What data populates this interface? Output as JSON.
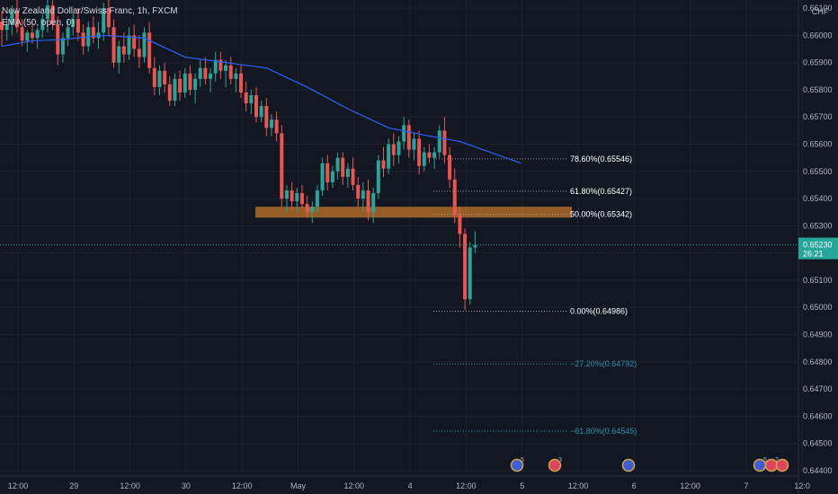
{
  "legend": {
    "symbol": "New Zealand Dollar/Swiss Franc, 1h, FXCM",
    "indicator": "EMA (50, open, 0)"
  },
  "price_axis": {
    "currency": "CHF",
    "last_price": "0.65230",
    "countdown": "26:21"
  },
  "colors": {
    "background": "#131722",
    "up": "#26a69a",
    "down": "#ef5350",
    "ema": "#2962ff",
    "zone": "#c87a2a",
    "fib_main": "#9598a1",
    "fib_ext": "#2d8fa8",
    "text": "#b2b5be"
  },
  "chart_data": {
    "type": "candlestick",
    "ylim": [
      0.6438,
      0.6613
    ],
    "y_ticks": [
      0.661,
      0.66,
      0.659,
      0.658,
      0.657,
      0.656,
      0.655,
      0.654,
      0.653,
      0.652,
      0.651,
      0.65,
      0.649,
      0.648,
      0.647,
      0.646,
      0.645,
      0.644
    ],
    "x_ticks": [
      "12:00",
      "29",
      "12:00",
      "30",
      "12:00",
      "May",
      "12:00",
      "4",
      "12:00",
      "5",
      "12:00",
      "6",
      "12:00",
      "7",
      "12:0"
    ],
    "fib_levels": [
      {
        "label": "78.60%(0.65546)",
        "price": 0.65546,
        "ext": false
      },
      {
        "label": "61.80%(0.65427)",
        "price": 0.65427,
        "ext": false
      },
      {
        "label": "50.00%(0.65342)",
        "price": 0.65342,
        "ext": false
      },
      {
        "label": "0.00%(0.64986)",
        "price": 0.64986,
        "ext": false
      },
      {
        "label": "−27.20%(0.64792)",
        "price": 0.64792,
        "ext": true
      },
      {
        "label": "−61.80%(0.64545)",
        "price": 0.64545,
        "ext": true
      }
    ],
    "zone": {
      "top": 0.6537,
      "bottom": 0.6533
    },
    "last_price": 0.6523,
    "events": [
      {
        "count": "5",
        "kind": "blue"
      },
      {
        "count": "3",
        "kind": "red"
      },
      {
        "count": "",
        "kind": "blue"
      },
      {
        "count": "5",
        "kind": "blue"
      },
      {
        "count": "2",
        "kind": "red"
      },
      {
        "count": "",
        "kind": "red"
      }
    ],
    "candles": [
      [
        0.6605,
        0.6609,
        0.6596,
        0.6602
      ],
      [
        0.6602,
        0.6607,
        0.6598,
        0.6604
      ],
      [
        0.6604,
        0.6611,
        0.66,
        0.6609
      ],
      [
        0.6609,
        0.6613,
        0.6601,
        0.6603
      ],
      [
        0.6603,
        0.6606,
        0.6596,
        0.6598
      ],
      [
        0.6598,
        0.6602,
        0.6594,
        0.6601
      ],
      [
        0.6601,
        0.6606,
        0.6597,
        0.6599
      ],
      [
        0.6599,
        0.6603,
        0.6595,
        0.6602
      ],
      [
        0.6602,
        0.6608,
        0.6599,
        0.6606
      ],
      [
        0.6606,
        0.6613,
        0.6601,
        0.6611
      ],
      [
        0.6611,
        0.6613,
        0.6602,
        0.6604
      ],
      [
        0.6604,
        0.6607,
        0.6589,
        0.6593
      ],
      [
        0.6593,
        0.6601,
        0.659,
        0.6599
      ],
      [
        0.6599,
        0.6606,
        0.6596,
        0.6603
      ],
      [
        0.6603,
        0.6608,
        0.66,
        0.6606
      ],
      [
        0.6606,
        0.661,
        0.6598,
        0.6601
      ],
      [
        0.6601,
        0.6604,
        0.6593,
        0.6596
      ],
      [
        0.6596,
        0.6605,
        0.6594,
        0.6603
      ],
      [
        0.6603,
        0.6607,
        0.6597,
        0.6599
      ],
      [
        0.6599,
        0.6605,
        0.6595,
        0.6601
      ],
      [
        0.6601,
        0.6612,
        0.6598,
        0.661
      ],
      [
        0.661,
        0.6613,
        0.66,
        0.6603
      ],
      [
        0.6603,
        0.6606,
        0.6588,
        0.659
      ],
      [
        0.659,
        0.6598,
        0.6586,
        0.6596
      ],
      [
        0.6596,
        0.6601,
        0.659,
        0.6593
      ],
      [
        0.6593,
        0.6603,
        0.6591,
        0.66
      ],
      [
        0.66,
        0.6604,
        0.6592,
        0.6595
      ],
      [
        0.6595,
        0.66,
        0.6588,
        0.6592
      ],
      [
        0.6592,
        0.6603,
        0.659,
        0.6601
      ],
      [
        0.6601,
        0.6605,
        0.6586,
        0.6588
      ],
      [
        0.6588,
        0.6592,
        0.6578,
        0.6581
      ],
      [
        0.6581,
        0.6589,
        0.6578,
        0.6587
      ],
      [
        0.6587,
        0.659,
        0.6579,
        0.6582
      ],
      [
        0.6582,
        0.6585,
        0.6574,
        0.6576
      ],
      [
        0.6576,
        0.6586,
        0.6574,
        0.6584
      ],
      [
        0.6584,
        0.6587,
        0.6576,
        0.6579
      ],
      [
        0.6579,
        0.6588,
        0.6577,
        0.6586
      ],
      [
        0.6586,
        0.6589,
        0.6578,
        0.658
      ],
      [
        0.658,
        0.6586,
        0.6575,
        0.6584
      ],
      [
        0.6584,
        0.6591,
        0.6581,
        0.6588
      ],
      [
        0.6588,
        0.6592,
        0.6582,
        0.6584
      ],
      [
        0.6584,
        0.6588,
        0.6579,
        0.6586
      ],
      [
        0.6586,
        0.6594,
        0.6583,
        0.6591
      ],
      [
        0.6591,
        0.6594,
        0.6584,
        0.6587
      ],
      [
        0.6587,
        0.6591,
        0.6581,
        0.6589
      ],
      [
        0.6589,
        0.6592,
        0.6582,
        0.6584
      ],
      [
        0.6584,
        0.6588,
        0.6579,
        0.6586
      ],
      [
        0.6586,
        0.6589,
        0.6577,
        0.6579
      ],
      [
        0.6579,
        0.6583,
        0.6572,
        0.6575
      ],
      [
        0.6575,
        0.658,
        0.6571,
        0.6578
      ],
      [
        0.6578,
        0.6581,
        0.6568,
        0.657
      ],
      [
        0.657,
        0.6576,
        0.6568,
        0.6574
      ],
      [
        0.6574,
        0.6577,
        0.6563,
        0.6566
      ],
      [
        0.6566,
        0.6571,
        0.6563,
        0.6569
      ],
      [
        0.6569,
        0.6572,
        0.6561,
        0.6564
      ],
      [
        0.6564,
        0.6567,
        0.6537,
        0.654
      ],
      [
        0.654,
        0.6545,
        0.6535,
        0.6543
      ],
      [
        0.6543,
        0.6546,
        0.6536,
        0.6539
      ],
      [
        0.6539,
        0.6544,
        0.6535,
        0.6542
      ],
      [
        0.6542,
        0.6545,
        0.6536,
        0.6538
      ],
      [
        0.6538,
        0.6541,
        0.6533,
        0.6535
      ],
      [
        0.6535,
        0.6539,
        0.6531,
        0.6537
      ],
      [
        0.6537,
        0.6545,
        0.6535,
        0.6543
      ],
      [
        0.6543,
        0.6555,
        0.6541,
        0.6553
      ],
      [
        0.6553,
        0.6556,
        0.6543,
        0.6546
      ],
      [
        0.6546,
        0.6552,
        0.6544,
        0.655
      ],
      [
        0.655,
        0.6557,
        0.6547,
        0.6555
      ],
      [
        0.6555,
        0.6557,
        0.6545,
        0.6548
      ],
      [
        0.6548,
        0.6553,
        0.6544,
        0.6551
      ],
      [
        0.6551,
        0.6555,
        0.6543,
        0.6545
      ],
      [
        0.6545,
        0.6548,
        0.6537,
        0.654
      ],
      [
        0.654,
        0.6546,
        0.6535,
        0.6543
      ],
      [
        0.6543,
        0.6547,
        0.6532,
        0.6535
      ],
      [
        0.6535,
        0.6544,
        0.6531,
        0.6542
      ],
      [
        0.6542,
        0.6556,
        0.654,
        0.6554
      ],
      [
        0.6554,
        0.6559,
        0.6548,
        0.6551
      ],
      [
        0.6551,
        0.6562,
        0.6549,
        0.656
      ],
      [
        0.656,
        0.6564,
        0.6552,
        0.6556
      ],
      [
        0.6556,
        0.6563,
        0.6553,
        0.6561
      ],
      [
        0.6561,
        0.657,
        0.6558,
        0.6567
      ],
      [
        0.6567,
        0.6569,
        0.6555,
        0.6558
      ],
      [
        0.6558,
        0.6564,
        0.6554,
        0.6562
      ],
      [
        0.6562,
        0.6565,
        0.6549,
        0.6552
      ],
      [
        0.6552,
        0.6559,
        0.655,
        0.6557
      ],
      [
        0.6557,
        0.656,
        0.6553,
        0.6555
      ],
      [
        0.6555,
        0.6559,
        0.6551,
        0.6557
      ],
      [
        0.6557,
        0.6567,
        0.6555,
        0.6565
      ],
      [
        0.6565,
        0.657,
        0.6553,
        0.6556
      ],
      [
        0.6556,
        0.6559,
        0.6544,
        0.6547
      ],
      [
        0.6547,
        0.6551,
        0.6531,
        0.6534
      ],
      [
        0.6534,
        0.6537,
        0.6522,
        0.6527
      ],
      [
        0.6527,
        0.6529,
        0.6499,
        0.6503
      ],
      [
        0.6503,
        0.6524,
        0.6501,
        0.6522
      ],
      [
        0.6522,
        0.6528,
        0.652,
        0.6523
      ]
    ],
    "ema": [
      [
        0,
        0.6596
      ],
      [
        6,
        0.6598
      ],
      [
        12,
        0.65985
      ],
      [
        20,
        0.66
      ],
      [
        28,
        0.6599
      ],
      [
        36,
        0.6592
      ],
      [
        44,
        0.659
      ],
      [
        52,
        0.6588
      ],
      [
        60,
        0.6581
      ],
      [
        68,
        0.6573
      ],
      [
        76,
        0.6566
      ],
      [
        84,
        0.6563
      ],
      [
        90,
        0.6561
      ],
      [
        96,
        0.6557
      ],
      [
        102,
        0.6553
      ]
    ]
  }
}
